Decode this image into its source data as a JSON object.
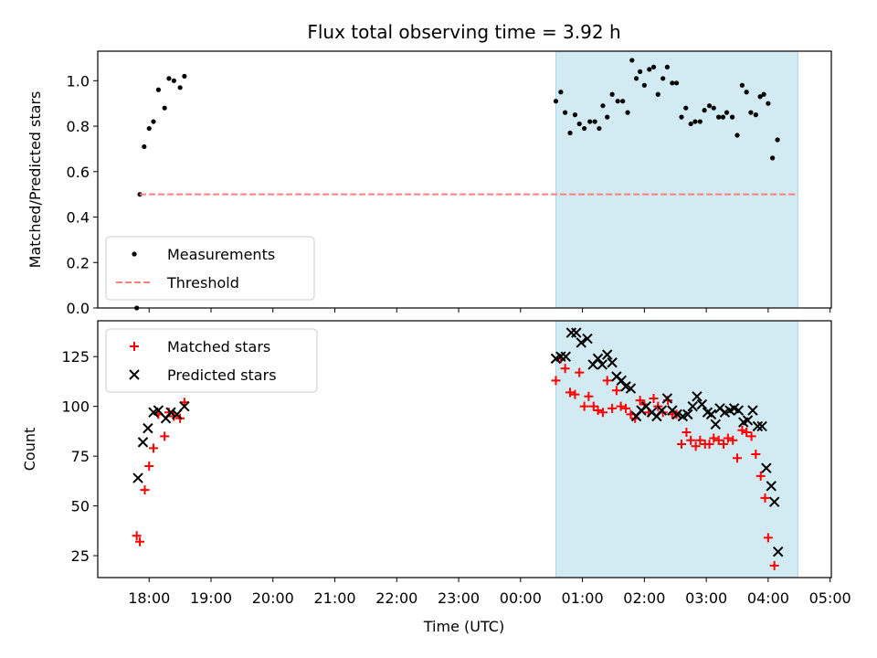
{
  "chart_data": {
    "title": "Flux total observing time = 3.92 h",
    "xlabel": "Time (UTC)",
    "x_tick_labels": [
      "18:00",
      "19:00",
      "20:00",
      "21:00",
      "22:00",
      "23:00",
      "00:00",
      "01:00",
      "02:00",
      "03:00",
      "04:00",
      "05:00"
    ],
    "x_tick_hours": [
      18,
      19,
      20,
      21,
      22,
      23,
      24,
      25,
      26,
      27,
      28,
      29
    ],
    "xlim_hours": [
      17.17,
      29.02
    ],
    "highlight_span_hours": [
      24.57,
      28.48
    ],
    "highlight_color": "#add8e6",
    "panels": [
      {
        "type": "scatter",
        "ylabel": "Matched/Predicted stars",
        "ylim": [
          0,
          1.13
        ],
        "y_ticks": [
          0.0,
          0.2,
          0.4,
          0.6,
          0.8,
          1.0
        ],
        "y_tick_labels": [
          "0.0",
          "0.2",
          "0.4",
          "0.6",
          "0.8",
          "1.0"
        ],
        "legend_position": "lower-left",
        "series": [
          {
            "name": "Measurements",
            "marker": "dot",
            "color": "#000000",
            "points": [
              [
                17.8,
                0.0
              ],
              [
                17.85,
                0.5
              ],
              [
                17.92,
                0.71
              ],
              [
                18.0,
                0.79
              ],
              [
                18.07,
                0.82
              ],
              [
                18.15,
                0.96
              ],
              [
                18.25,
                0.88
              ],
              [
                18.32,
                1.01
              ],
              [
                18.4,
                1.0
              ],
              [
                18.5,
                0.97
              ],
              [
                18.57,
                1.02
              ],
              [
                24.57,
                0.91
              ],
              [
                24.65,
                0.95
              ],
              [
                24.72,
                0.86
              ],
              [
                24.8,
                0.77
              ],
              [
                24.88,
                0.85
              ],
              [
                24.95,
                0.81
              ],
              [
                25.03,
                0.79
              ],
              [
                25.12,
                0.82
              ],
              [
                25.2,
                0.82
              ],
              [
                25.27,
                0.79
              ],
              [
                25.33,
                0.89
              ],
              [
                25.4,
                0.84
              ],
              [
                25.48,
                0.94
              ],
              [
                25.57,
                0.91
              ],
              [
                25.65,
                0.91
              ],
              [
                25.73,
                0.86
              ],
              [
                25.8,
                1.09
              ],
              [
                25.87,
                1.01
              ],
              [
                25.93,
                1.04
              ],
              [
                26.0,
                0.98
              ],
              [
                26.08,
                1.05
              ],
              [
                26.15,
                1.06
              ],
              [
                26.22,
                0.94
              ],
              [
                26.3,
                1.01
              ],
              [
                26.37,
                1.06
              ],
              [
                26.45,
                0.99
              ],
              [
                26.52,
                0.99
              ],
              [
                26.6,
                0.84
              ],
              [
                26.67,
                0.88
              ],
              [
                26.75,
                0.81
              ],
              [
                26.82,
                0.82
              ],
              [
                26.9,
                0.82
              ],
              [
                26.97,
                0.87
              ],
              [
                27.05,
                0.89
              ],
              [
                27.12,
                0.88
              ],
              [
                27.2,
                0.84
              ],
              [
                27.27,
                0.84
              ],
              [
                27.33,
                0.86
              ],
              [
                27.42,
                0.84
              ],
              [
                27.5,
                0.76
              ],
              [
                27.58,
                0.98
              ],
              [
                27.65,
                0.95
              ],
              [
                27.72,
                0.86
              ],
              [
                27.8,
                0.85
              ],
              [
                27.87,
                0.93
              ],
              [
                27.93,
                0.94
              ],
              [
                28.0,
                0.9
              ],
              [
                28.07,
                0.66
              ],
              [
                28.15,
                0.74
              ]
            ]
          },
          {
            "name": "Threshold",
            "type": "line",
            "style": "dashed",
            "color": "#ff7f7f",
            "points": [
              [
                17.85,
                0.5
              ],
              [
                28.48,
                0.5
              ]
            ]
          }
        ]
      },
      {
        "type": "scatter",
        "ylabel": "Count",
        "ylim": [
          14,
          143
        ],
        "y_ticks": [
          25,
          50,
          75,
          100,
          125
        ],
        "y_tick_labels": [
          "25",
          "50",
          "75",
          "100",
          "125"
        ],
        "legend_position": "upper-left",
        "series": [
          {
            "name": "Matched stars",
            "marker": "plus",
            "color": "#ff0000",
            "points": [
              [
                17.8,
                35
              ],
              [
                17.85,
                32
              ],
              [
                17.93,
                58
              ],
              [
                18.0,
                70
              ],
              [
                18.07,
                79
              ],
              [
                18.15,
                96
              ],
              [
                18.25,
                85
              ],
              [
                18.32,
                97
              ],
              [
                18.4,
                95
              ],
              [
                18.5,
                94
              ],
              [
                18.57,
                102
              ],
              [
                24.57,
                113
              ],
              [
                24.65,
                124
              ],
              [
                24.72,
                119
              ],
              [
                24.8,
                107
              ],
              [
                24.88,
                106
              ],
              [
                24.95,
                117
              ],
              [
                25.03,
                100
              ],
              [
                25.1,
                105
              ],
              [
                25.18,
                100
              ],
              [
                25.25,
                98
              ],
              [
                25.33,
                97
              ],
              [
                25.4,
                113
              ],
              [
                25.48,
                99
              ],
              [
                25.55,
                108
              ],
              [
                25.62,
                100
              ],
              [
                25.7,
                99
              ],
              [
                25.78,
                96
              ],
              [
                25.85,
                94
              ],
              [
                25.93,
                103
              ],
              [
                26.0,
                101
              ],
              [
                26.07,
                97
              ],
              [
                26.15,
                104
              ],
              [
                26.22,
                100
              ],
              [
                26.3,
                97
              ],
              [
                26.38,
                103
              ],
              [
                26.45,
                96
              ],
              [
                26.52,
                96
              ],
              [
                26.6,
                81
              ],
              [
                26.68,
                87
              ],
              [
                26.75,
                83
              ],
              [
                26.83,
                80
              ],
              [
                26.9,
                83
              ],
              [
                26.98,
                81
              ],
              [
                27.05,
                81
              ],
              [
                27.12,
                84
              ],
              [
                27.2,
                83
              ],
              [
                27.28,
                81
              ],
              [
                27.35,
                84
              ],
              [
                27.43,
                83
              ],
              [
                27.5,
                74
              ],
              [
                27.58,
                88
              ],
              [
                27.65,
                87
              ],
              [
                27.73,
                85
              ],
              [
                27.8,
                76
              ],
              [
                27.88,
                65
              ],
              [
                27.95,
                54
              ],
              [
                28.0,
                34
              ],
              [
                28.1,
                20
              ]
            ]
          },
          {
            "name": "Predicted stars",
            "marker": "x",
            "color": "#000000",
            "points": [
              [
                17.82,
                64
              ],
              [
                17.9,
                82
              ],
              [
                17.98,
                89
              ],
              [
                18.07,
                97
              ],
              [
                18.15,
                98
              ],
              [
                18.27,
                94
              ],
              [
                18.35,
                97
              ],
              [
                18.45,
                96
              ],
              [
                18.57,
                100
              ],
              [
                24.57,
                124
              ],
              [
                24.65,
                125
              ],
              [
                24.73,
                125
              ],
              [
                24.82,
                137
              ],
              [
                24.9,
                137
              ],
              [
                24.98,
                132
              ],
              [
                25.08,
                134
              ],
              [
                25.17,
                121
              ],
              [
                25.25,
                124
              ],
              [
                25.32,
                121
              ],
              [
                25.4,
                126
              ],
              [
                25.48,
                122
              ],
              [
                25.55,
                115
              ],
              [
                25.63,
                113
              ],
              [
                25.7,
                110
              ],
              [
                25.78,
                109
              ],
              [
                25.87,
                95
              ],
              [
                25.95,
                98
              ],
              [
                26.03,
                100
              ],
              [
                26.12,
                97
              ],
              [
                26.2,
                95
              ],
              [
                26.28,
                98
              ],
              [
                26.37,
                104
              ],
              [
                26.45,
                98
              ],
              [
                26.53,
                96
              ],
              [
                26.62,
                95
              ],
              [
                26.7,
                96
              ],
              [
                26.78,
                100
              ],
              [
                26.85,
                105
              ],
              [
                26.93,
                101
              ],
              [
                27.02,
                97
              ],
              [
                27.08,
                96
              ],
              [
                27.15,
                91
              ],
              [
                27.22,
                99
              ],
              [
                27.3,
                97
              ],
              [
                27.38,
                98
              ],
              [
                27.45,
                99
              ],
              [
                27.52,
                98
              ],
              [
                27.6,
                92
              ],
              [
                27.67,
                93
              ],
              [
                27.75,
                98
              ],
              [
                27.83,
                90
              ],
              [
                27.9,
                90
              ],
              [
                27.97,
                69
              ],
              [
                28.05,
                60
              ],
              [
                28.1,
                52
              ],
              [
                28.16,
                27
              ]
            ]
          }
        ]
      }
    ]
  }
}
